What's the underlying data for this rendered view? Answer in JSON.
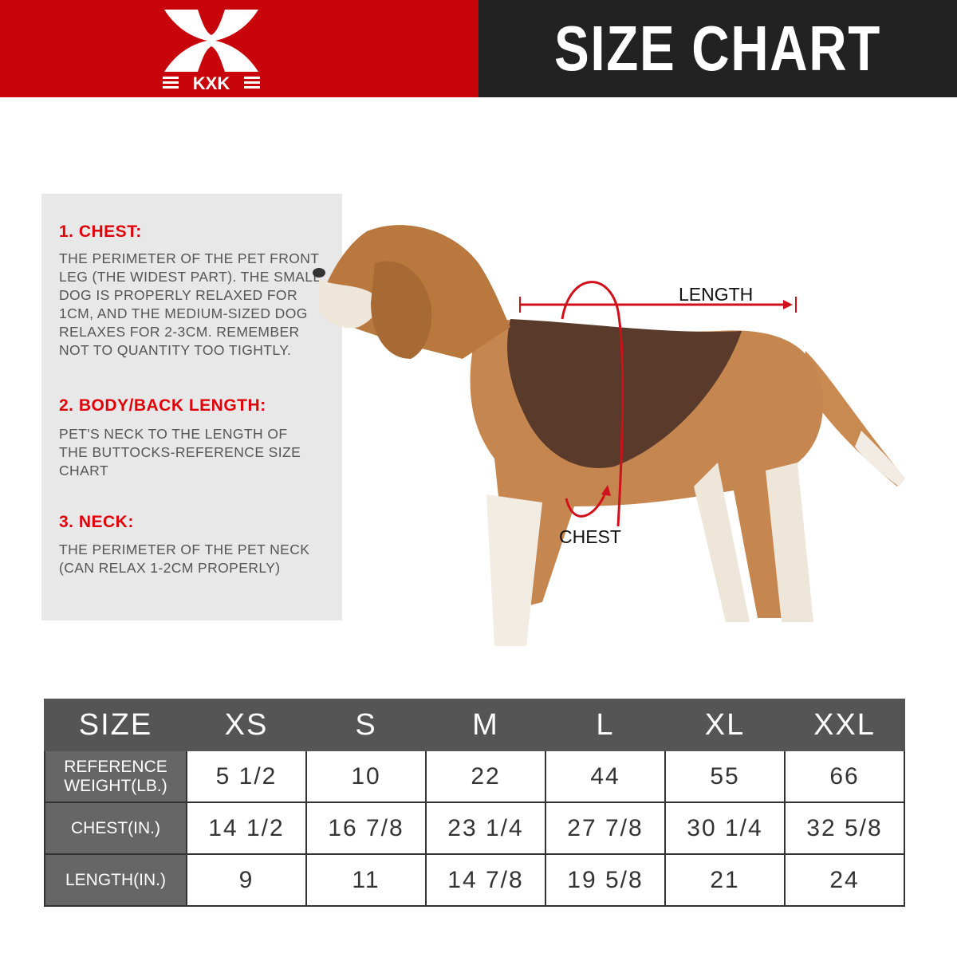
{
  "header": {
    "brand": "KXK",
    "title": "SIZE CHART",
    "brand_color": "#c8050a"
  },
  "guide": [
    {
      "heading": "1. CHEST:",
      "text": "THE PERIMETER OF THE PET FRONT\nLEG (THE WIDEST PART). THE SMALL\nDOG IS PROPERLY RELAXED FOR\n1CM, AND THE MEDIUM-SIZED DOG\nRELAXES FOR 2-3CM. REMEMBER\nNOT TO QUANTITY TOO TIGHTLY."
    },
    {
      "heading": "2. BODY/BACK LENGTH:",
      "text": "PET'S NECK TO THE LENGTH OF\nTHE BUTTOCKS-REFERENCE SIZE\nCHART"
    },
    {
      "heading": "3. NECK:",
      "text": "THE PERIMETER OF THE PET NECK\n (CAN RELAX 1-2CM PROPERLY)"
    }
  ],
  "diagram": {
    "length_label": "LENGTH",
    "chest_label": "CHEST"
  },
  "table": {
    "headers": [
      "SIZE",
      "XS",
      "S",
      "M",
      "L",
      "XL",
      "XXL"
    ],
    "rows": [
      {
        "label": "REFERENCE WEIGHT(LB.)",
        "values": [
          "5 1/2",
          "10",
          "22",
          "44",
          "55",
          "66"
        ]
      },
      {
        "label": "CHEST(IN.)",
        "values": [
          "14 1/2",
          "16 7/8",
          "23 1/4",
          "27 7/8",
          "30 1/4",
          "32 5/8"
        ]
      },
      {
        "label": "LENGTH(IN.)",
        "values": [
          "9",
          "11",
          "14 7/8",
          "19 5/8",
          "21",
          "24"
        ]
      }
    ]
  }
}
